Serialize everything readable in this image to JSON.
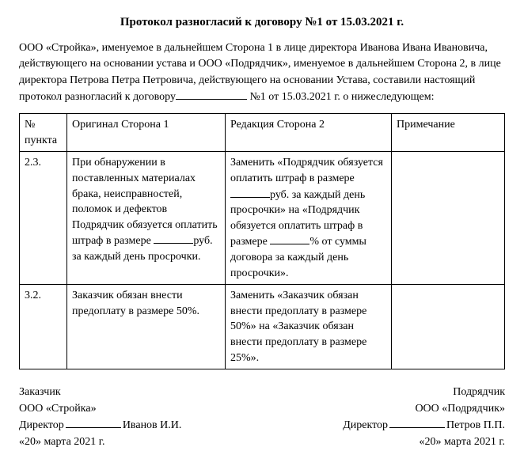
{
  "title": "Протокол разногласий к договору №1 от 15.03.2021 г.",
  "preamble": {
    "p1": "ООО «Стройка», именуемое в дальнейшем Сторона 1 в лице директора Иванова Ивана Ивановича, действующего на основании устава и ООО «Подрядчик», именуемое в дальнейшем Сторона 2, в лице директора Петрова Петра Петровича, действующего на основании Устава, составили настоящий протокол разногласий к договору",
    "p2": "№1 от 15.03.2021 г. о нижеследующем:"
  },
  "table": {
    "headers": {
      "c1": "№ пункта",
      "c2": "Оригинал Сторона 1",
      "c3": "Редакция Сторона 2",
      "c4": "Примечание"
    },
    "rows": [
      {
        "num": "2.3.",
        "orig_a": "При обнаружении в поставленных материалах брака, неисправностей, поломок и дефектов Подрядчик обязуется оплатить штраф в размере ",
        "orig_b": "руб. за каждый день просрочки.",
        "edit_a": "Заменить «Подрядчик обязуется оплатить штраф в размере",
        "edit_b": "руб. за каждый день просрочки» на «Подрядчик обязуется оплатить штраф в размере ",
        "edit_c": "% от суммы договора за каждый день просрочки».",
        "note": ""
      },
      {
        "num": "3.2.",
        "orig_a": "Заказчик обязан внести предоплату в размере 50%.",
        "orig_b": "",
        "edit_a": "Заменить «Заказчик обязан внести предоплату в размере 50%» на «Заказчик обязан внести предоплату в размере 25%».",
        "edit_b": "",
        "edit_c": "",
        "note": ""
      }
    ]
  },
  "sig": {
    "left": {
      "role": "Заказчик",
      "org": "ООО «Стройка»",
      "dir": "Директор",
      "name": "Иванов И.И.",
      "date": "«20» марта 2021 г."
    },
    "right": {
      "role": "Подрядчик",
      "org": "ООО «Подрядчик»",
      "dir": "Директор",
      "name": "Петров П.П.",
      "date": "«20» марта 2021 г."
    }
  }
}
